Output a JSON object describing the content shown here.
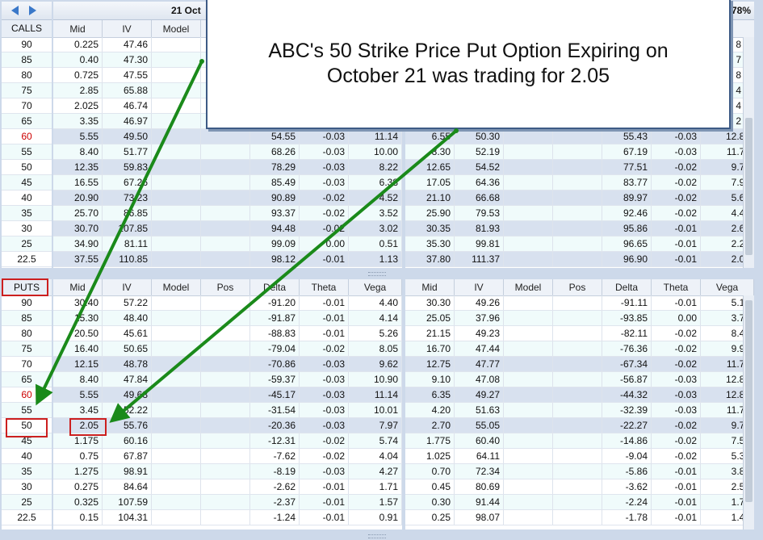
{
  "header": {
    "date_label": "21 Oct",
    "right_fragment": "78%",
    "calls_label": "CALLS",
    "puts_label": "PUTS"
  },
  "callout": {
    "line1": "ABC's 50 Strike Price Put Option  Expiring on",
    "line2": "October 21 was trading for  2.05"
  },
  "columns": {
    "left_calls": [
      "Mid",
      "IV",
      "Model"
    ],
    "full": [
      "Mid",
      "IV",
      "Model",
      "Pos",
      "Delta",
      "Theta",
      "Vega"
    ]
  },
  "strikes": [
    "90",
    "85",
    "80",
    "75",
    "70",
    "65",
    "60",
    "55",
    "50",
    "45",
    "40",
    "35",
    "30",
    "25",
    "22.5"
  ],
  "highlight_strike": "60",
  "calls_left": [
    [
      "0.225",
      "47.46",
      "",
      "",
      "",
      "",
      ""
    ],
    [
      "0.40",
      "47.30",
      "",
      "",
      "",
      "",
      ""
    ],
    [
      "0.725",
      "47.55",
      "",
      "",
      "",
      "",
      ""
    ],
    [
      "2.85",
      "65.88",
      "",
      "",
      "",
      "",
      ""
    ],
    [
      "2.025",
      "46.74",
      "",
      "",
      "",
      "",
      ""
    ],
    [
      "3.35",
      "46.97",
      "",
      "",
      "",
      "",
      ""
    ],
    [
      "5.55",
      "49.50",
      "",
      "",
      "54.55",
      "-0.03",
      "11.14"
    ],
    [
      "8.40",
      "51.77",
      "",
      "",
      "68.26",
      "-0.03",
      "10.00"
    ],
    [
      "12.35",
      "59.83",
      "",
      "",
      "78.29",
      "-0.03",
      "8.22"
    ],
    [
      "16.55",
      "67.26",
      "",
      "",
      "85.49",
      "-0.03",
      "6.38"
    ],
    [
      "20.90",
      "73.23",
      "",
      "",
      "90.89",
      "-0.02",
      "4.52"
    ],
    [
      "25.70",
      "86.85",
      "",
      "",
      "93.37",
      "-0.02",
      "3.52"
    ],
    [
      "30.70",
      "107.85",
      "",
      "",
      "94.48",
      "-0.02",
      "3.02"
    ],
    [
      "34.90",
      "81.11",
      "",
      "",
      "99.09",
      "0.00",
      "0.51"
    ],
    [
      "37.55",
      "110.85",
      "",
      "",
      "98.12",
      "-0.01",
      "1.13"
    ]
  ],
  "calls_right": [
    [
      "",
      "",
      "",
      "",
      "",
      "",
      ""
    ],
    [
      "",
      "",
      "",
      "",
      "",
      "",
      ""
    ],
    [
      "",
      "",
      "",
      "",
      "",
      "",
      ""
    ],
    [
      "",
      "",
      "",
      "",
      "",
      "",
      ""
    ],
    [
      "",
      "",
      "",
      "",
      "",
      "",
      ""
    ],
    [
      "",
      "",
      "",
      "",
      "",
      "",
      ""
    ],
    [
      "6.55",
      "50.30",
      "",
      "",
      "55.43",
      "-0.03",
      "12.87"
    ],
    [
      "8.30",
      "52.19",
      "",
      "",
      "67.19",
      "-0.03",
      "11.74"
    ],
    [
      "12.65",
      "54.52",
      "",
      "",
      "77.51",
      "-0.02",
      "9.71"
    ],
    [
      "17.05",
      "64.36",
      "",
      "",
      "83.77",
      "-0.02",
      "7.91"
    ],
    [
      "21.10",
      "66.68",
      "",
      "",
      "89.97",
      "-0.02",
      "5.60"
    ],
    [
      "25.90",
      "79.53",
      "",
      "",
      "92.46",
      "-0.02",
      "4.48"
    ],
    [
      "30.35",
      "81.93",
      "",
      "",
      "95.86",
      "-0.01",
      "2.69"
    ],
    [
      "35.30",
      "99.81",
      "",
      "",
      "96.65",
      "-0.01",
      "2.22"
    ],
    [
      "37.80",
      "111.37",
      "",
      "",
      "96.90",
      "-0.01",
      "2.07"
    ]
  ],
  "calls_right_edge": [
    "8",
    "7",
    "8",
    "4",
    "4",
    "2",
    "",
    "",
    "",
    "",
    "",
    "",
    "",
    "",
    ""
  ],
  "puts_left": [
    [
      "30.40",
      "57.22",
      "",
      "",
      "-91.20",
      "-0.01",
      "4.40"
    ],
    [
      "15.30",
      "48.40",
      "",
      "",
      "-91.87",
      "-0.01",
      "4.14"
    ],
    [
      "20.50",
      "45.61",
      "",
      "",
      "-88.83",
      "-0.01",
      "5.26"
    ],
    [
      "16.40",
      "50.65",
      "",
      "",
      "-79.04",
      "-0.02",
      "8.05"
    ],
    [
      "12.15",
      "48.78",
      "",
      "",
      "-70.86",
      "-0.03",
      "9.62"
    ],
    [
      "8.40",
      "47.84",
      "",
      "",
      "-59.37",
      "-0.03",
      "10.90"
    ],
    [
      "5.55",
      "49.68",
      "",
      "",
      "-45.17",
      "-0.03",
      "11.14"
    ],
    [
      "3.45",
      "52.22",
      "",
      "",
      "-31.54",
      "-0.03",
      "10.01"
    ],
    [
      "2.05",
      "55.76",
      "",
      "",
      "-20.36",
      "-0.03",
      "7.97"
    ],
    [
      "1.175",
      "60.16",
      "",
      "",
      "-12.31",
      "-0.02",
      "5.74"
    ],
    [
      "0.75",
      "67.87",
      "",
      "",
      "-7.62",
      "-0.02",
      "4.04"
    ],
    [
      "1.275",
      "98.91",
      "",
      "",
      "-8.19",
      "-0.03",
      "4.27"
    ],
    [
      "0.275",
      "84.64",
      "",
      "",
      "-2.62",
      "-0.01",
      "1.71"
    ],
    [
      "0.325",
      "107.59",
      "",
      "",
      "-2.37",
      "-0.01",
      "1.57"
    ],
    [
      "0.15",
      "104.31",
      "",
      "",
      "-1.24",
      "-0.01",
      "0.91"
    ]
  ],
  "puts_right": [
    [
      "30.30",
      "49.26",
      "",
      "",
      "-91.11",
      "-0.01",
      "5.10"
    ],
    [
      "25.05",
      "37.96",
      "",
      "",
      "-93.85",
      "0.00",
      "3.79"
    ],
    [
      "21.15",
      "49.23",
      "",
      "",
      "-82.11",
      "-0.02",
      "8.43"
    ],
    [
      "16.70",
      "47.44",
      "",
      "",
      "-76.36",
      "-0.02",
      "9.98"
    ],
    [
      "12.75",
      "47.77",
      "",
      "",
      "-67.34",
      "-0.02",
      "11.72"
    ],
    [
      "9.10",
      "47.08",
      "",
      "",
      "-56.87",
      "-0.03",
      "12.80"
    ],
    [
      "6.35",
      "49.27",
      "",
      "",
      "-44.32",
      "-0.03",
      "12.88"
    ],
    [
      "4.20",
      "51.63",
      "",
      "",
      "-32.39",
      "-0.03",
      "11.73"
    ],
    [
      "2.70",
      "55.05",
      "",
      "",
      "-22.27",
      "-0.02",
      "9.74"
    ],
    [
      "1.775",
      "60.40",
      "",
      "",
      "-14.86",
      "-0.02",
      "7.57"
    ],
    [
      "1.025",
      "64.11",
      "",
      "",
      "-9.04",
      "-0.02",
      "5.33"
    ],
    [
      "0.70",
      "72.34",
      "",
      "",
      "-5.86",
      "-0.01",
      "3.82"
    ],
    [
      "0.45",
      "80.69",
      "",
      "",
      "-3.62",
      "-0.01",
      "2.59"
    ],
    [
      "0.30",
      "91.44",
      "",
      "",
      "-2.24",
      "-0.01",
      "1.74"
    ],
    [
      "0.25",
      "98.07",
      "",
      "",
      "-1.78",
      "-0.01",
      "1.43"
    ]
  ],
  "colors": {
    "accent_red": "#cc1f1f",
    "arrow_green": "#1a8a1a",
    "header_blue": "#d8e1ef"
  }
}
